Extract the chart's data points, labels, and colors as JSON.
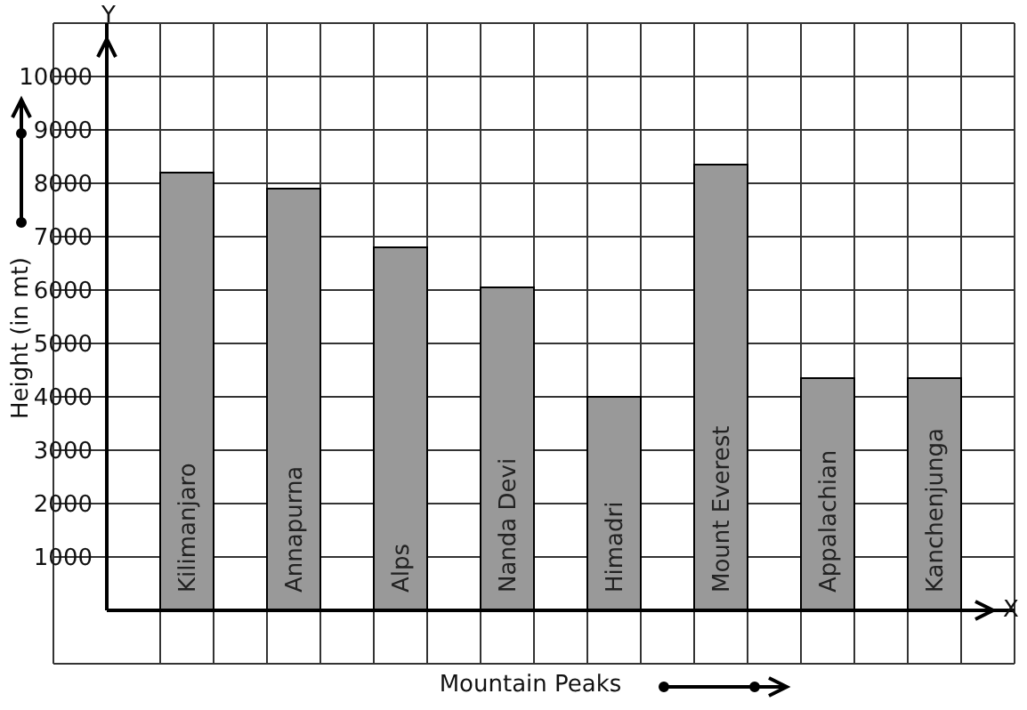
{
  "chart_data": {
    "type": "bar",
    "xlabel": "Mountain Peaks",
    "ylabel": "Height (in mt)",
    "categories": [
      "Kilimanjaro",
      "Annapurna",
      "Alps",
      "Nanda Devi",
      "Himadri",
      "Mount Everest",
      "Appalachian",
      "Kanchenjunga"
    ],
    "values": [
      8200,
      7900,
      6800,
      6050,
      4000,
      8350,
      4350,
      4350
    ],
    "color": "#999999",
    "ylim": [
      0,
      11000
    ],
    "yticks": [
      1000,
      2000,
      3000,
      4000,
      5000,
      6000,
      7000,
      8000,
      9000,
      10000
    ],
    "grid": true,
    "annotations": [
      "Y",
      "X"
    ]
  }
}
